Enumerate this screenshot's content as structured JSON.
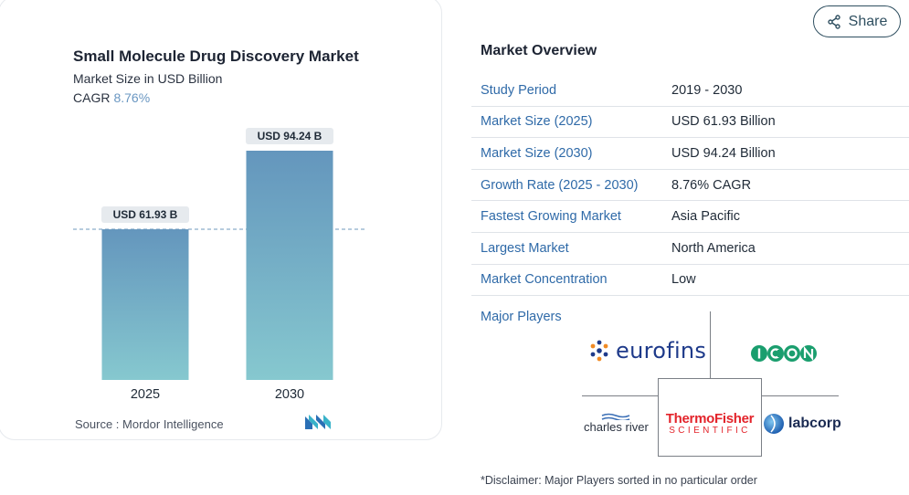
{
  "chart_data": {
    "type": "bar",
    "title": "Small Molecule Drug Discovery Market",
    "subtitle": "Market Size in USD Billion",
    "cagr_label": "CAGR",
    "cagr_value": "8.76%",
    "categories": [
      "2025",
      "2030"
    ],
    "values": [
      61.93,
      94.24
    ],
    "data_labels": [
      "USD 61.93 B",
      "USD 94.24 B"
    ],
    "reference_line_value": 61.93,
    "bar_color_top": "#6496bd",
    "bar_color_bottom": "#86c8cf",
    "source": "Source :  Mordor Intelligence"
  },
  "share": {
    "label": "Share",
    "icon": "share-icon"
  },
  "overview": {
    "title": "Market Overview",
    "rows": [
      {
        "label": "Study Period",
        "value": "2019 - 2030"
      },
      {
        "label": "Market Size (2025)",
        "value": "USD 61.93 Billion"
      },
      {
        "label": "Market Size (2030)",
        "value": "USD 94.24 Billion"
      },
      {
        "label": "Growth Rate (2025 - 2030)",
        "value": "8.76% CAGR"
      },
      {
        "label": "Fastest Growing Market",
        "value": "Asia Pacific"
      },
      {
        "label": "Largest Market",
        "value": "North America"
      },
      {
        "label": "Market Concentration",
        "value": "Low"
      }
    ],
    "players_label": "Major Players",
    "players": {
      "eurofins": "eurofins",
      "icon": "ICON",
      "charles_river": "charles river",
      "thermo_line1": "ThermoFisher",
      "thermo_line2": "SCIENTIFIC",
      "labcorp": "labcorp"
    },
    "disclaimer": "*Disclaimer: Major Players sorted in no particular order"
  },
  "colors": {
    "accent_blue": "#2f6aa8",
    "cagr_blue": "#6a97c2",
    "thermo_red": "#e3242b",
    "icon_green": "#1a9e6e"
  }
}
